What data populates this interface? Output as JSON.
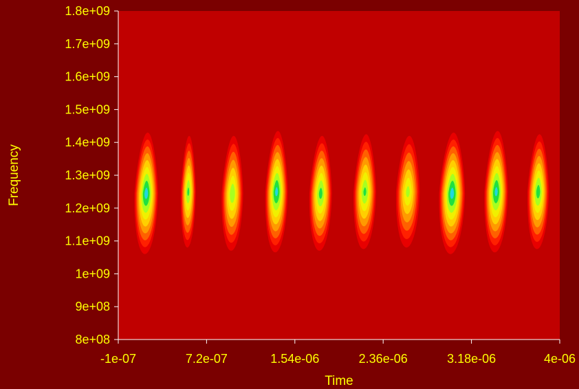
{
  "chart_data": {
    "type": "heatmap",
    "title": "",
    "xlabel": "Time",
    "ylabel": "Frequency",
    "xlim": [
      -1e-07,
      4e-06
    ],
    "ylim": [
      800000000,
      1800000000
    ],
    "x_ticks": [
      {
        "value": -1e-07,
        "label": "-1e-07"
      },
      {
        "value": 7.2e-07,
        "label": "7.2e-07"
      },
      {
        "value": 1.54e-06,
        "label": "1.54e-06"
      },
      {
        "value": 2.36e-06,
        "label": "2.36e-06"
      },
      {
        "value": 3.18e-06,
        "label": "3.18e-06"
      },
      {
        "value": 4e-06,
        "label": "4e-06"
      }
    ],
    "y_ticks": [
      {
        "value": 800000000,
        "label": "8e+08"
      },
      {
        "value": 900000000,
        "label": "9e+08"
      },
      {
        "value": 1000000000,
        "label": "1e+09"
      },
      {
        "value": 1100000000,
        "label": "1.1e+09"
      },
      {
        "value": 1200000000,
        "label": "1.2e+09"
      },
      {
        "value": 1300000000,
        "label": "1.3e+09"
      },
      {
        "value": 1400000000,
        "label": "1.4e+09"
      },
      {
        "value": 1500000000,
        "label": "1.5e+09"
      },
      {
        "value": 1600000000,
        "label": "1.6e+09"
      },
      {
        "value": 1700000000,
        "label": "1.7e+09"
      },
      {
        "value": 1800000000,
        "label": "1.8e+09"
      }
    ],
    "colormap": [
      "#c00000",
      "#e80000",
      "#ff2000",
      "#ff6000",
      "#ff9a00",
      "#ffcf00",
      "#f0f000",
      "#a8ff20",
      "#20e040",
      "#20d8e0"
    ],
    "pulses": [
      {
        "time": 1.6e-07,
        "center_freq": 1245000000,
        "freq_half_width": 185000000,
        "time_half_width": 1.1e-07,
        "peak": 0.98
      },
      {
        "time": 5.5e-07,
        "center_freq": 1250000000,
        "freq_half_width": 170000000,
        "time_half_width": 7e-08,
        "peak": 0.84
      },
      {
        "time": 9.6e-07,
        "center_freq": 1245000000,
        "freq_half_width": 175000000,
        "time_half_width": 1e-07,
        "peak": 0.8
      },
      {
        "time": 1.37e-06,
        "center_freq": 1250000000,
        "freq_half_width": 185000000,
        "time_half_width": 1.05e-07,
        "peak": 0.96
      },
      {
        "time": 1.78e-06,
        "center_freq": 1245000000,
        "freq_half_width": 175000000,
        "time_half_width": 1.05e-07,
        "peak": 0.86
      },
      {
        "time": 2.19e-06,
        "center_freq": 1250000000,
        "freq_half_width": 175000000,
        "time_half_width": 1.05e-07,
        "peak": 0.84
      },
      {
        "time": 2.59e-06,
        "center_freq": 1250000000,
        "freq_half_width": 170000000,
        "time_half_width": 1.1e-07,
        "peak": 0.74
      },
      {
        "time": 3e-06,
        "center_freq": 1245000000,
        "freq_half_width": 185000000,
        "time_half_width": 1.2e-07,
        "peak": 0.98
      },
      {
        "time": 3.41e-06,
        "center_freq": 1250000000,
        "freq_half_width": 185000000,
        "time_half_width": 1.1e-07,
        "peak": 0.96
      },
      {
        "time": 3.8e-06,
        "center_freq": 1250000000,
        "freq_half_width": 175000000,
        "time_half_width": 1e-07,
        "peak": 0.88
      }
    ],
    "background_level": 0.0,
    "colors": {
      "page_background": "#7a0000",
      "plot_background": "#c00000",
      "text": "#ffff00",
      "axis": "#ffffff"
    }
  }
}
